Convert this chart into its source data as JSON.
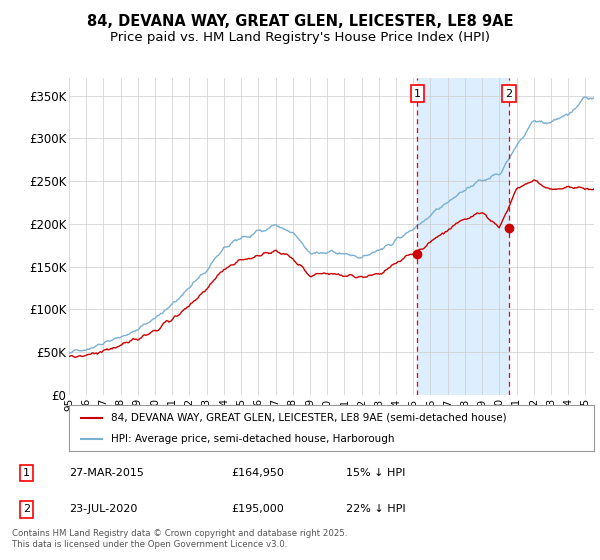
{
  "title": "84, DEVANA WAY, GREAT GLEN, LEICESTER, LE8 9AE",
  "subtitle": "Price paid vs. HM Land Registry's House Price Index (HPI)",
  "ylim": [
    0,
    370000
  ],
  "yticks": [
    0,
    50000,
    100000,
    150000,
    200000,
    250000,
    300000,
    350000
  ],
  "ytick_labels": [
    "£0",
    "£50K",
    "£100K",
    "£150K",
    "£200K",
    "£250K",
    "£300K",
    "£350K"
  ],
  "xlim_start": 1995,
  "xlim_end": 2025.5,
  "sale1_date": 2015.24,
  "sale1_price": 164950,
  "sale2_date": 2020.56,
  "sale2_price": 195000,
  "sale1_info": "27-MAR-2015",
  "sale1_amount": "£164,950",
  "sale1_hpi": "15% ↓ HPI",
  "sale2_info": "23-JUL-2020",
  "sale2_amount": "£195,000",
  "sale2_hpi": "22% ↓ HPI",
  "legend_red": "84, DEVANA WAY, GREAT GLEN, LEICESTER, LE8 9AE (semi-detached house)",
  "legend_blue": "HPI: Average price, semi-detached house, Harborough",
  "footnote": "Contains HM Land Registry data © Crown copyright and database right 2025.\nThis data is licensed under the Open Government Licence v3.0.",
  "red_color": "#cc0000",
  "blue_color": "#7ab0d4",
  "shade_color": "#ddeeff",
  "background_color": "#ffffff",
  "grid_color": "#cccccc",
  "title_fontsize": 10.5,
  "subtitle_fontsize": 9.5
}
